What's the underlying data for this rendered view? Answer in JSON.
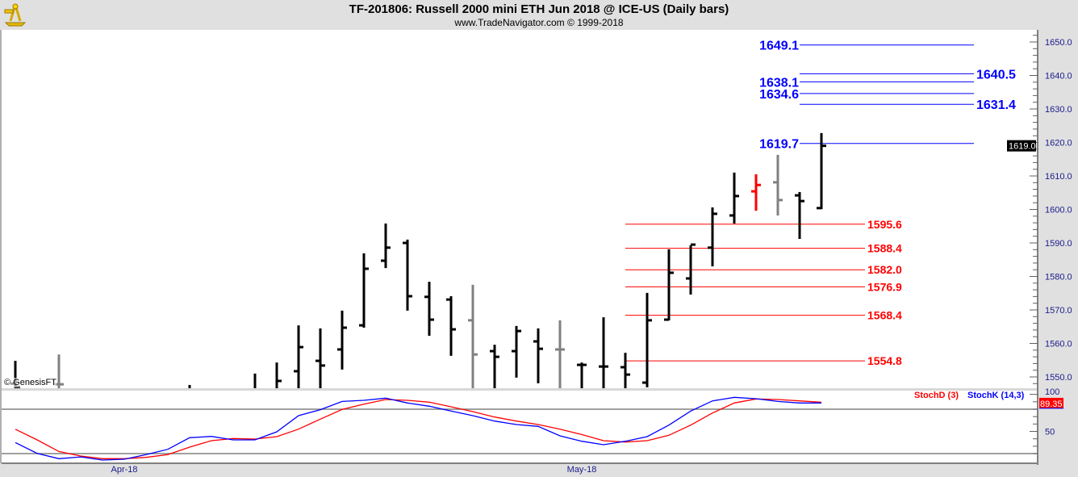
{
  "header": {
    "title": "TF-201806:  Russell 2000 mini ETH Jun 2018 @ ICE-US  (Daily bars)",
    "subtitle": "www.TradeNavigator.com © 1999-2018",
    "logo": "sextant-logo",
    "copyright": "© GenesisFT"
  },
  "colors": {
    "up_bar": "#000000",
    "neutral_bar": "#808080",
    "highlight_bar": "#ff0000",
    "target_lines": "#0000ff",
    "support_lines": "#ff0000",
    "axis_text": "#1a1a8c",
    "stoch_k": "#0000ff",
    "stoch_d": "#ff0000"
  },
  "chart_data": [
    {
      "type": "ohlc",
      "title": "TF-201806:  Russell 2000 mini ETH Jun 2018 @ ICE-US  (Daily bars)",
      "ylim": [
        1546.5,
        1656
      ],
      "yticks": [
        "1650.0",
        "1640.0",
        "1630.0",
        "1620.0",
        "1610.0",
        "1600.0",
        "1590.0",
        "1580.0",
        "1570.0",
        "1560.0",
        "1550.0"
      ],
      "xtick_labels": [
        {
          "label": "Apr-18",
          "date": "2018-04-02"
        },
        {
          "label": "May-18",
          "date": "2018-05-01"
        }
      ],
      "dates": [
        "2018-03-23",
        "2018-03-26",
        "2018-03-27",
        "2018-03-28",
        "2018-03-29",
        "2018-04-02",
        "2018-04-03",
        "2018-04-04",
        "2018-04-05",
        "2018-04-06",
        "2018-04-09",
        "2018-04-10",
        "2018-04-11",
        "2018-04-12",
        "2018-04-13",
        "2018-04-16",
        "2018-04-17",
        "2018-04-18",
        "2018-04-19",
        "2018-04-20",
        "2018-04-23",
        "2018-04-24",
        "2018-04-25",
        "2018-04-26",
        "2018-04-27",
        "2018-04-30",
        "2018-05-01",
        "2018-05-02",
        "2018-05-03",
        "2018-05-04",
        "2018-05-07",
        "2018-05-08",
        "2018-05-09",
        "2018-05-10",
        "2018-05-11",
        "2018-05-14",
        "2018-05-15",
        "2018-05-16"
      ],
      "bars": [
        {
          "date": "2018-03-23",
          "o": 1548.0,
          "h": 1554.8,
          "l": 1540,
          "c": 1547.0,
          "color": "black"
        },
        {
          "date": "2018-03-27",
          "o": 1547.8,
          "h": 1556.7,
          "l": 1540,
          "c": 1547.8,
          "color": "gray"
        },
        {
          "date": "2018-04-05",
          "o": 1546.0,
          "h": 1547.6,
          "l": 1540,
          "c": 1546.0,
          "color": "black"
        },
        {
          "date": "2018-04-10",
          "o": 1546.0,
          "h": 1551.0,
          "l": 1540,
          "c": 1546.0,
          "color": "black"
        },
        {
          "date": "2018-04-11",
          "o": 1546.0,
          "h": 1554.3,
          "l": 1540,
          "c": 1548.8,
          "color": "black"
        },
        {
          "date": "2018-04-12",
          "o": 1551.7,
          "h": 1565.4,
          "l": 1540,
          "c": 1558.9,
          "color": "black"
        },
        {
          "date": "2018-04-13",
          "o": 1554.8,
          "h": 1564.5,
          "l": 1540,
          "c": 1553.4,
          "color": "black"
        },
        {
          "date": "2018-04-16",
          "o": 1558.2,
          "h": 1569.8,
          "l": 1552.2,
          "c": 1564.7,
          "color": "black"
        },
        {
          "date": "2018-04-17",
          "o": 1565.4,
          "h": 1586.9,
          "l": 1564.7,
          "c": 1582.3,
          "color": "black"
        },
        {
          "date": "2018-04-18",
          "o": 1584.7,
          "h": 1595.8,
          "l": 1582.5,
          "c": 1588.6,
          "color": "black"
        },
        {
          "date": "2018-04-19",
          "o": 1590.0,
          "h": 1591.0,
          "l": 1569.8,
          "c": 1574.1,
          "color": "black"
        },
        {
          "date": "2018-04-20",
          "o": 1573.9,
          "h": 1578.4,
          "l": 1562.3,
          "c": 1567.1,
          "color": "black"
        },
        {
          "date": "2018-04-23",
          "o": 1573.1,
          "h": 1574.1,
          "l": 1556.3,
          "c": 1564.2,
          "color": "black"
        },
        {
          "date": "2018-04-24",
          "o": 1566.9,
          "h": 1577.5,
          "l": 1540,
          "c": 1556.7,
          "color": "gray"
        },
        {
          "date": "2018-04-25",
          "o": 1557.7,
          "h": 1559.6,
          "l": 1540,
          "c": 1556.0,
          "color": "black"
        },
        {
          "date": "2018-04-26",
          "o": 1557.7,
          "h": 1565.2,
          "l": 1549.8,
          "c": 1563.7,
          "color": "black"
        },
        {
          "date": "2018-04-27",
          "o": 1560.6,
          "h": 1564.5,
          "l": 1548.1,
          "c": 1558.4,
          "color": "black"
        },
        {
          "date": "2018-04-30",
          "o": 1558.2,
          "h": 1566.9,
          "l": 1540,
          "c": 1558.2,
          "color": "gray"
        },
        {
          "date": "2018-05-01",
          "o": 1553.6,
          "h": 1554.3,
          "l": 1540,
          "c": 1553.6,
          "color": "black"
        },
        {
          "date": "2018-05-02",
          "o": 1553.1,
          "h": 1567.8,
          "l": 1540,
          "c": 1553.1,
          "color": "black"
        },
        {
          "date": "2018-05-03",
          "o": 1552.9,
          "h": 1557.2,
          "l": 1540,
          "c": 1550.7,
          "color": "black"
        },
        {
          "date": "2018-05-04",
          "o": 1548.3,
          "h": 1575.1,
          "l": 1546.9,
          "c": 1566.9,
          "color": "black"
        },
        {
          "date": "2018-05-07",
          "o": 1567.1,
          "h": 1588.1,
          "l": 1566.9,
          "c": 1581.1,
          "color": "black"
        },
        {
          "date": "2018-05-08",
          "o": 1579.4,
          "h": 1589.3,
          "l": 1574.6,
          "c": 1589.5,
          "color": "black"
        },
        {
          "date": "2018-05-09",
          "o": 1588.6,
          "h": 1600.6,
          "l": 1583.0,
          "c": 1598.7,
          "color": "black"
        },
        {
          "date": "2018-05-10",
          "o": 1598.2,
          "h": 1611.0,
          "l": 1595.8,
          "c": 1604.0,
          "color": "black"
        },
        {
          "date": "2018-05-11",
          "o": 1605.4,
          "h": 1610.5,
          "l": 1599.6,
          "c": 1607.3,
          "color": "red"
        },
        {
          "date": "2018-05-14",
          "o": 1608.1,
          "h": 1616.3,
          "l": 1598.2,
          "c": 1602.8,
          "color": "gray"
        },
        {
          "date": "2018-05-15",
          "o": 1604.2,
          "h": 1605.2,
          "l": 1591.2,
          "c": 1602.5,
          "color": "black"
        },
        {
          "date": "2018-05-16",
          "o": 1600.4,
          "h": 1622.8,
          "l": 1600.1,
          "c": 1619.0,
          "color": "black"
        }
      ],
      "last_price_label": "1619.0",
      "target_levels": [
        {
          "value": 1649.1,
          "label": "1649.1",
          "side": "left"
        },
        {
          "value": 1640.5,
          "label": "1640.5",
          "side": "right"
        },
        {
          "value": 1638.1,
          "label": "1638.1",
          "side": "left"
        },
        {
          "value": 1634.6,
          "label": "1634.6",
          "side": "left"
        },
        {
          "value": 1631.4,
          "label": "1631.4",
          "side": "right"
        },
        {
          "value": 1619.7,
          "label": "1619.7",
          "side": "left"
        }
      ],
      "support_levels": [
        {
          "value": 1595.6,
          "label": "1595.6"
        },
        {
          "value": 1588.4,
          "label": "1588.4"
        },
        {
          "value": 1582.0,
          "label": "1582.0"
        },
        {
          "value": 1576.9,
          "label": "1576.9"
        },
        {
          "value": 1568.4,
          "label": "1568.4"
        },
        {
          "value": 1554.8,
          "label": "1554.8"
        }
      ]
    },
    {
      "type": "line",
      "ylim": [
        10,
        100
      ],
      "yticks": [
        "100",
        "50"
      ],
      "guide_levels": [
        80,
        20
      ],
      "last_value_label": "89.35",
      "series": [
        {
          "name": "StochD (3)",
          "color": "#ff0000",
          "values": [
            53,
            38.6,
            22.9,
            16.7,
            13.1,
            13.1,
            14.9,
            18.6,
            28.7,
            37.5,
            40.4,
            39.7,
            42.9,
            53.1,
            66.6,
            79.7,
            86.9,
            93.1,
            92,
            89.5,
            83.3,
            76.7,
            69.4,
            64,
            59.3,
            53.1,
            45.8,
            37.5,
            35.6,
            37.5,
            44.8,
            58.5,
            74.9,
            88.4,
            93.8,
            93.1,
            91.2,
            89.35
          ]
        },
        {
          "name": "StochK (14,3)",
          "color": "#0000ff",
          "values": [
            35,
            20.4,
            13.1,
            15.6,
            11.3,
            12.4,
            18.6,
            25.8,
            41.5,
            43.3,
            38.6,
            38.6,
            49.5,
            71.3,
            79.3,
            90.5,
            92,
            94.9,
            88.4,
            84,
            77.5,
            71.3,
            64,
            59.3,
            56.8,
            44,
            36.7,
            32,
            36.7,
            42.9,
            58.5,
            77.5,
            91.2,
            96,
            94.2,
            90.5,
            88.4,
            88.4
          ]
        }
      ]
    }
  ]
}
